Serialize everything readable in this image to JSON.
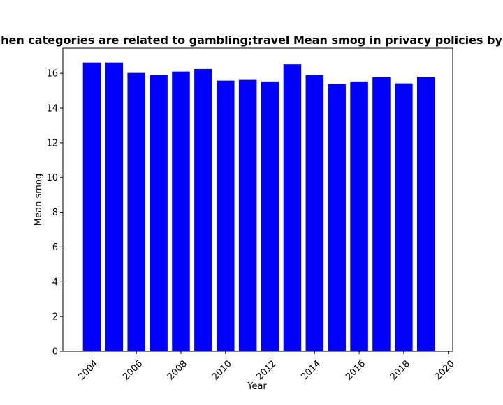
{
  "chart_data": {
    "type": "bar",
    "title": "hen categories are related to gambling;travel Mean smog in privacy policies by y",
    "xlabel": "Year",
    "ylabel": "Mean smog",
    "x": [
      2004,
      2005,
      2006,
      2007,
      2008,
      2009,
      2010,
      2011,
      2012,
      2013,
      2014,
      2015,
      2016,
      2017,
      2018,
      2019
    ],
    "values": [
      16.62,
      16.62,
      16.02,
      15.9,
      16.1,
      16.25,
      15.58,
      15.62,
      15.53,
      16.52,
      15.9,
      15.38,
      15.53,
      15.78,
      15.42,
      15.78
    ],
    "xlim": [
      2002.7,
      2020.2
    ],
    "ylim": [
      0,
      17.45
    ],
    "xticks": [
      "2004",
      "2006",
      "2008",
      "2010",
      "2012",
      "2014",
      "2016",
      "2018",
      "2020"
    ],
    "yticks": [
      "0",
      "2",
      "4",
      "6",
      "8",
      "10",
      "12",
      "14",
      "16"
    ],
    "grid": false,
    "bar_color": "#0000ff"
  }
}
